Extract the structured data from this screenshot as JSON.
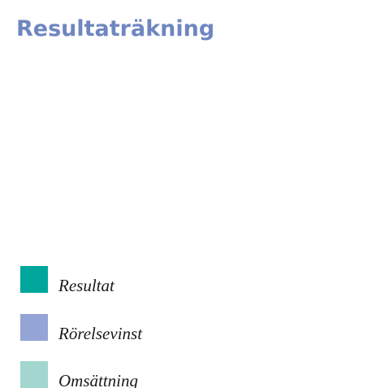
{
  "chart_data": {
    "type": "bar",
    "title": "Resultaträkning",
    "series": [
      {
        "name": "Resultat",
        "color": "#00a69c"
      },
      {
        "name": "Rörelsevinst",
        "color": "#94a4d4"
      },
      {
        "name": "Omsättning",
        "color": "#a2d6cf"
      }
    ]
  }
}
